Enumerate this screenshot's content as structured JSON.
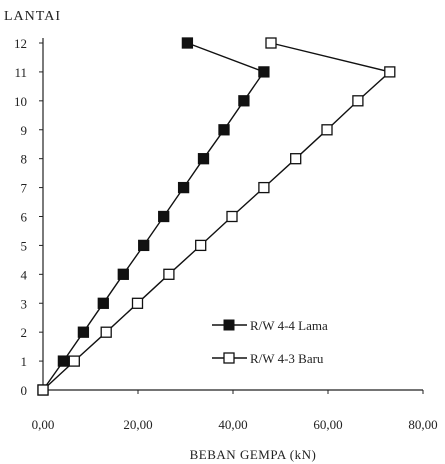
{
  "chart_data": {
    "type": "line",
    "title": "",
    "xlabel": "BEBAN GEMPA (kN)",
    "ylabel": "LANTAI",
    "xlim": [
      0,
      80
    ],
    "ylim": [
      0,
      12
    ],
    "x_ticks": [
      "0,00",
      "20,00",
      "40,00",
      "60,00",
      "80,00"
    ],
    "y_ticks": [
      "0",
      "1",
      "2",
      "3",
      "4",
      "5",
      "6",
      "7",
      "8",
      "9",
      "10",
      "11",
      "12"
    ],
    "grid": false,
    "legend_position": "center-right",
    "series": [
      {
        "name": "R/W 4-4 Lama",
        "marker": "filled-square",
        "color": "#111111",
        "points": [
          {
            "x": 0,
            "y": 0
          },
          {
            "x": 4.3,
            "y": 1
          },
          {
            "x": 8.5,
            "y": 2
          },
          {
            "x": 12.7,
            "y": 3
          },
          {
            "x": 16.9,
            "y": 4
          },
          {
            "x": 21.2,
            "y": 5
          },
          {
            "x": 25.4,
            "y": 6
          },
          {
            "x": 29.6,
            "y": 7
          },
          {
            "x": 33.8,
            "y": 8
          },
          {
            "x": 38.1,
            "y": 9
          },
          {
            "x": 42.3,
            "y": 10
          },
          {
            "x": 46.5,
            "y": 11
          },
          {
            "x": 30.4,
            "y": 12
          }
        ]
      },
      {
        "name": "R/W 4-3 Baru",
        "marker": "hollow-square",
        "color": "#111111",
        "points": [
          {
            "x": 0,
            "y": 0
          },
          {
            "x": 6.6,
            "y": 1
          },
          {
            "x": 13.3,
            "y": 2
          },
          {
            "x": 19.9,
            "y": 3
          },
          {
            "x": 26.5,
            "y": 4
          },
          {
            "x": 33.2,
            "y": 5
          },
          {
            "x": 39.8,
            "y": 6
          },
          {
            "x": 46.5,
            "y": 7
          },
          {
            "x": 53.2,
            "y": 8
          },
          {
            "x": 59.8,
            "y": 9
          },
          {
            "x": 66.3,
            "y": 10
          },
          {
            "x": 73.0,
            "y": 11
          },
          {
            "x": 48.0,
            "y": 12
          }
        ]
      }
    ]
  }
}
